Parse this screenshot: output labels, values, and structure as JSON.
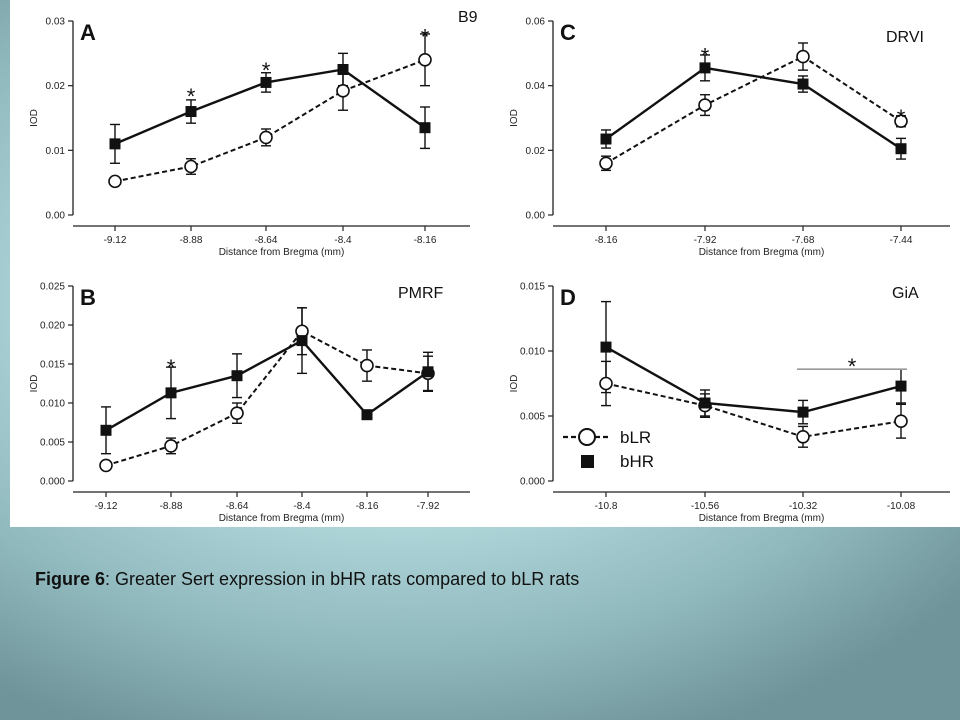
{
  "caption": {
    "label": "Figure 6",
    "text": ":  Greater Sert expression in bHR rats compared to bLR rats"
  },
  "colors": {
    "bLR_fill": "#ffffff",
    "bHR_fill": "#111111",
    "line": "#111111",
    "bracket": "#999999"
  },
  "legend": {
    "placement": "inside-bottom-left-of-panel-D",
    "items": [
      {
        "name": "bLR",
        "marker": "open-circle",
        "line": "dashed"
      },
      {
        "name": "bHR",
        "marker": "filled-square",
        "line": "solid"
      }
    ]
  },
  "chart_data": [
    {
      "panel": "A",
      "region": "B9",
      "type": "line",
      "x": [
        "-9.12",
        "-8.88",
        "-8.64",
        "-8.4",
        "-8.16"
      ],
      "xlabel": "Distance from Bregma (mm)",
      "ylabel": "IOD",
      "ylim": [
        0,
        0.03
      ],
      "yticks": [
        "0.00",
        "0.01",
        "0.02",
        "0.03"
      ],
      "yticks_values": [
        0,
        0.01,
        0.02,
        0.03
      ],
      "series": [
        {
          "name": "bLR",
          "values": [
            0.0052,
            0.0075,
            0.012,
            0.0192,
            0.024
          ],
          "errors": [
            0.0005,
            0.0012,
            0.0013,
            0.003,
            0.004
          ]
        },
        {
          "name": "bHR",
          "values": [
            0.011,
            0.016,
            0.0205,
            0.0225,
            0.0135
          ],
          "errors": [
            0.003,
            0.0018,
            0.0015,
            0.0025,
            0.0032
          ]
        }
      ],
      "stars": [
        {
          "x": "-8.88",
          "y": 0.0195
        },
        {
          "x": "-8.64",
          "y": 0.0235
        },
        {
          "x": "-8.16",
          "y": 0.0287
        }
      ]
    },
    {
      "panel": "B",
      "region": "PMRF",
      "type": "line",
      "x": [
        "-9.12",
        "-8.88",
        "-8.64",
        "-8.4",
        "-8.16",
        "-7.92"
      ],
      "xlabel": "Distance from Bregma (mm)",
      "ylabel": "IOD",
      "ylim": [
        0,
        0.025
      ],
      "yticks": [
        "0.000",
        "0.005",
        "0.010",
        "0.015",
        "0.020",
        "0.025"
      ],
      "yticks_values": [
        0,
        0.005,
        0.01,
        0.015,
        0.02,
        0.025
      ],
      "series": [
        {
          "name": "bLR",
          "values": [
            0.002,
            0.0045,
            0.0087,
            0.0192,
            0.0148,
            0.0138
          ],
          "errors": [
            0.0003,
            0.001,
            0.0013,
            0.003,
            0.002,
            0.0022
          ]
        },
        {
          "name": "bHR",
          "values": [
            0.0065,
            0.0113,
            0.0135,
            0.018,
            0.0085,
            0.014
          ],
          "errors": [
            0.003,
            0.0033,
            0.0028,
            0.0042,
            0.0005,
            0.0025
          ]
        }
      ],
      "stars": [
        {
          "x": "-8.88",
          "y": 0.0155
        }
      ]
    },
    {
      "panel": "C",
      "region": "DRVI",
      "type": "line",
      "x": [
        "-8.16",
        "-7.92",
        "-7.68",
        "-7.44"
      ],
      "xlabel": "Distance from Bregma (mm)",
      "ylabel": "IOD",
      "ylim": [
        0,
        0.06
      ],
      "yticks": [
        "0.00",
        "0.02",
        "0.04",
        "0.06"
      ],
      "yticks_values": [
        0,
        0.02,
        0.04,
        0.06
      ],
      "series": [
        {
          "name": "bLR",
          "values": [
            0.016,
            0.034,
            0.049,
            0.029
          ],
          "errors": [
            0.0022,
            0.0032,
            0.0042,
            0.0017
          ]
        },
        {
          "name": "bHR",
          "values": [
            0.0235,
            0.0455,
            0.0405,
            0.0205
          ],
          "errors": [
            0.0028,
            0.004,
            0.0025,
            0.0032
          ]
        }
      ],
      "stars": [
        {
          "x": "-7.92",
          "y": 0.0515
        },
        {
          "x": "-7.44",
          "y": 0.0325
        }
      ]
    },
    {
      "panel": "D",
      "region": "GiA",
      "type": "line",
      "x": [
        "-10.8",
        "-10.56",
        "-10.32",
        "-10.08"
      ],
      "xlabel": "Distance from Bregma (mm)",
      "ylabel": "IOD",
      "ylim": [
        0,
        0.015
      ],
      "yticks": [
        "0.000",
        "0.005",
        "0.010",
        "0.015"
      ],
      "yticks_values": [
        0,
        0.005,
        0.01,
        0.015
      ],
      "series": [
        {
          "name": "bLR",
          "values": [
            0.0075,
            0.0058,
            0.0034,
            0.0046
          ],
          "errors": [
            0.0017,
            0.0009,
            0.0008,
            0.0013
          ]
        },
        {
          "name": "bHR",
          "values": [
            0.0103,
            0.006,
            0.0053,
            0.0073
          ],
          "errors": [
            0.0035,
            0.001,
            0.0009,
            0.0013
          ]
        }
      ],
      "bracket": {
        "from": "-10.32",
        "to": "-10.08",
        "y": 0.0086
      },
      "stars": [
        {
          "x_between": [
            "-10.32",
            "-10.08"
          ],
          "y": 0.0094
        }
      ]
    }
  ]
}
